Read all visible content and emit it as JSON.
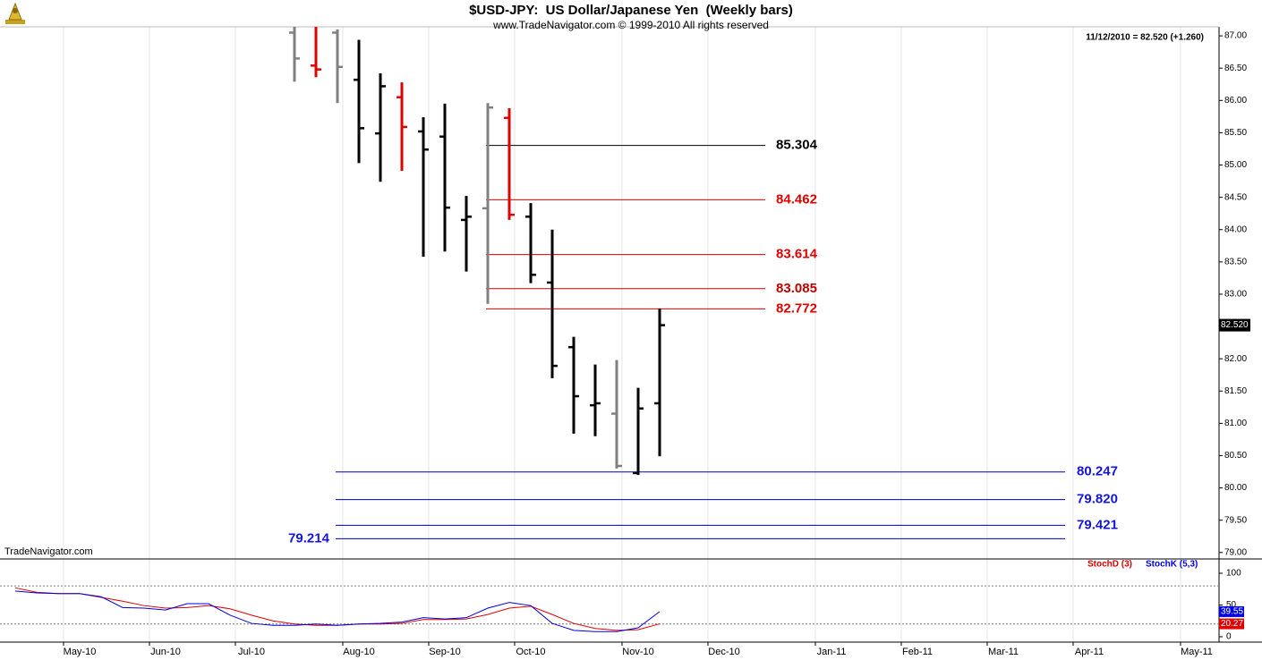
{
  "chart_data": [
    {
      "type": "ohlc",
      "title": "$USD-JPY:  US Dollar/Japanese Yen  (Weekly bars)",
      "subtitle": "www.TradeNavigator.com © 1999-2010 All rights reserved",
      "status": "11/12/2010 = 82.520 (+1.260)",
      "watermark": "TradeNavigator.com",
      "last_label": "82.520",
      "categories": [
        null,
        null,
        null,
        "May-10",
        null,
        null,
        null,
        "Jun-10",
        null,
        null,
        null,
        "Jul-10",
        null,
        null,
        null,
        null,
        "Aug-10",
        null,
        null,
        null,
        "Sep-10",
        null,
        null,
        null,
        "Oct-10",
        null,
        null,
        null,
        null,
        "Nov-10",
        null,
        null,
        null,
        "Dec-10",
        null,
        null,
        null,
        null,
        "Jan-11",
        null,
        null,
        null,
        "Feb-11",
        null,
        null,
        null,
        "Mar-11",
        null,
        null,
        null,
        "Apr-11",
        null,
        null,
        null,
        null,
        "May-11"
      ],
      "open": [
        null,
        null,
        null,
        null,
        null,
        null,
        null,
        null,
        null,
        null,
        null,
        null,
        null,
        87.05,
        86.54,
        87.05,
        86.32,
        85.49,
        86.05,
        85.52,
        85.44,
        84.15,
        84.33,
        85.73,
        84.2,
        83.18,
        82.18,
        81.28,
        81.15,
        80.23,
        81.31,
        null,
        null,
        null,
        null,
        null,
        null,
        null,
        null,
        null,
        null,
        null,
        null,
        null,
        null,
        null,
        null,
        null,
        null,
        null,
        null,
        null,
        null,
        null,
        null,
        null
      ],
      "high": [
        null,
        null,
        null,
        null,
        null,
        null,
        null,
        null,
        null,
        null,
        null,
        null,
        null,
        87.3,
        87.2,
        87.1,
        86.94,
        86.42,
        86.28,
        85.74,
        85.95,
        84.52,
        85.96,
        85.88,
        84.41,
        84.0,
        82.34,
        81.91,
        81.98,
        81.55,
        82.78,
        null,
        null,
        null,
        null,
        null,
        null,
        null,
        null,
        null,
        null,
        null,
        null,
        null,
        null,
        null,
        null,
        null,
        null,
        null,
        null,
        null,
        null,
        null,
        null,
        null
      ],
      "low": [
        null,
        null,
        null,
        null,
        null,
        null,
        null,
        null,
        null,
        null,
        null,
        null,
        null,
        86.29,
        86.36,
        85.96,
        85.03,
        84.74,
        84.91,
        83.58,
        83.66,
        83.35,
        82.85,
        84.15,
        83.17,
        81.7,
        80.84,
        80.8,
        80.3,
        80.2,
        80.49,
        null,
        null,
        null,
        null,
        null,
        null,
        null,
        null,
        null,
        null,
        null,
        null,
        null,
        null,
        null,
        null,
        null,
        null,
        null,
        null,
        null,
        null,
        null,
        null,
        null
      ],
      "close": [
        null,
        null,
        null,
        null,
        null,
        null,
        null,
        null,
        null,
        null,
        null,
        null,
        null,
        86.65,
        86.48,
        86.52,
        85.57,
        86.22,
        85.59,
        85.24,
        84.34,
        84.2,
        85.89,
        84.23,
        83.3,
        81.89,
        81.42,
        81.31,
        80.34,
        81.23,
        82.52,
        null,
        null,
        null,
        null,
        null,
        null,
        null,
        null,
        null,
        null,
        null,
        null,
        null,
        null,
        null,
        null,
        null,
        null,
        null,
        null,
        null,
        null,
        null,
        null,
        null
      ],
      "colors": [
        null,
        null,
        null,
        null,
        null,
        null,
        null,
        null,
        null,
        null,
        null,
        null,
        null,
        "#808080",
        "#e00000",
        "#808080",
        "#000000",
        "#000000",
        "#e00000",
        "#000000",
        "#000000",
        "#000000",
        "#808080",
        "#e00000",
        "#000000",
        "#000000",
        "#000000",
        "#000000",
        "#808080",
        "#000000",
        "#000000",
        null,
        null,
        null,
        null,
        null,
        null,
        null,
        null,
        null,
        null,
        null,
        null,
        null,
        null,
        null,
        null,
        null,
        null,
        null,
        null,
        null,
        null,
        null,
        null,
        null
      ],
      "levels": [
        {
          "values": [
            85.304,
            84.462,
            83.614,
            83.085,
            82.772
          ],
          "value_labels": [
            "85.304",
            "84.462",
            "83.614",
            "83.085",
            "82.772"
          ],
          "colors": [
            "#000000",
            "#e00000",
            "#e00000",
            "#c00000",
            "#e00000"
          ]
        },
        {
          "values": [
            80.247,
            79.82,
            79.421,
            79.214
          ],
          "value_labels": [
            "80.247",
            "79.820",
            "79.421",
            "79.214"
          ],
          "colors": [
            "#0000c0",
            "#0000c0",
            "#0000c0",
            "#0000c0"
          ]
        }
      ],
      "ylim": [
        78.9,
        87.14
      ],
      "yticks": [
        {
          "value": 79,
          "label": "79.00"
        },
        {
          "value": 79.5,
          "label": "79.50"
        },
        {
          "value": 80,
          "label": "80.00"
        },
        {
          "value": 80.5,
          "label": "80.50"
        },
        {
          "value": 81,
          "label": "81.00"
        },
        {
          "value": 81.5,
          "label": "81.50"
        },
        {
          "value": 82,
          "label": "82.00"
        },
        {
          "value": 82.5,
          "label": "82.50"
        },
        {
          "value": 83,
          "label": "83.00"
        },
        {
          "value": 83.5,
          "label": "83.50"
        },
        {
          "value": 84,
          "label": "84.00"
        },
        {
          "value": 84.5,
          "label": "84.50"
        },
        {
          "value": 85,
          "label": "85.00"
        },
        {
          "value": 85.5,
          "label": "85.50"
        },
        {
          "value": 86,
          "label": "86.00"
        },
        {
          "value": 86.5,
          "label": "86.50"
        },
        {
          "value": 87,
          "label": "87.00"
        }
      ]
    },
    {
      "type": "line",
      "series": [
        {
          "name": "StochD (3)",
          "color": "#e00000",
          "values": [
            77,
            70,
            68,
            68,
            62,
            56,
            49,
            45,
            46,
            49,
            44,
            34,
            25,
            20,
            18,
            18,
            20,
            20,
            21,
            27,
            27,
            28,
            35,
            45,
            48,
            35,
            21,
            13,
            10,
            11,
            20.27,
            null,
            null,
            null,
            null,
            null,
            null,
            null,
            null,
            null,
            null,
            null,
            null,
            null,
            null,
            null,
            null,
            null,
            null,
            null,
            null,
            null,
            null,
            null,
            null,
            null
          ]
        },
        {
          "name": "StochK (5,3)",
          "color": "#0000e0",
          "values": [
            72,
            69,
            68,
            68,
            63,
            46,
            45,
            42,
            52,
            52,
            34,
            21,
            18,
            18,
            20,
            18,
            20,
            21,
            23,
            30,
            28,
            30,
            45,
            54,
            49,
            21,
            10,
            8,
            8,
            14,
            39.55,
            null,
            null,
            null,
            null,
            null,
            null,
            null,
            null,
            null,
            null,
            null,
            null,
            null,
            null,
            null,
            null,
            null,
            null,
            null,
            null,
            null,
            null,
            null,
            null,
            null
          ]
        }
      ],
      "ylim": [
        -8.5,
        118.3
      ],
      "yticks": [
        0,
        50,
        100
      ],
      "reference_lines": [
        80,
        20
      ]
    }
  ]
}
